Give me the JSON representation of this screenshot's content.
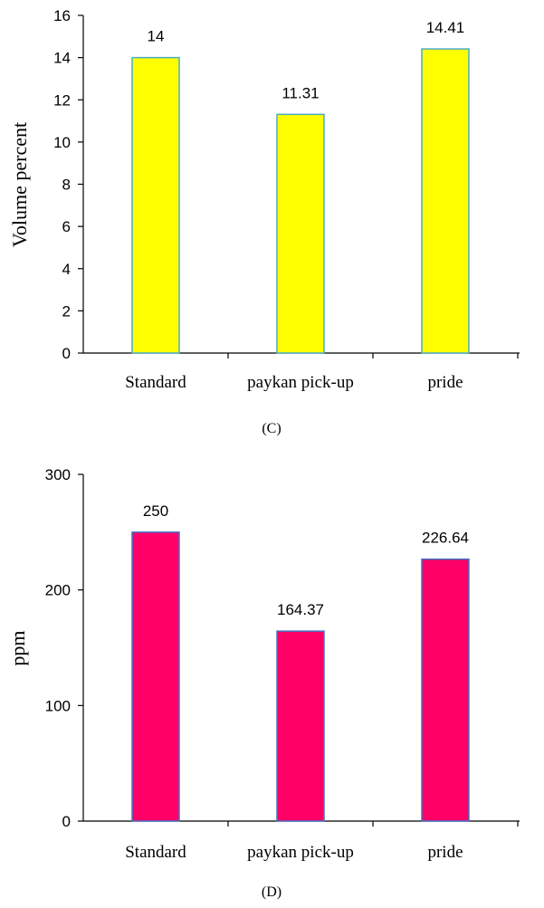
{
  "chart_data": [
    {
      "type": "bar",
      "categories": [
        "Standard",
        "paykan pick-up",
        "pride"
      ],
      "values": [
        14,
        11.31,
        14.41
      ],
      "data_labels": [
        "14",
        "11.31",
        "14.41"
      ],
      "ylabel": "Volume  percent",
      "ylim": [
        0,
        16
      ],
      "yticks": [
        "0",
        "2",
        "4",
        "6",
        "8",
        "10",
        "12",
        "14",
        "16"
      ],
      "caption": "(C)",
      "bar_fill": "#FFFF00",
      "bar_stroke": "#4BACC6",
      "grid": false
    },
    {
      "type": "bar",
      "categories": [
        "Standard",
        "paykan pick-up",
        "pride"
      ],
      "values": [
        250,
        164.37,
        226.64
      ],
      "data_labels": [
        "250",
        "164.37",
        "226.64"
      ],
      "ylabel": "ppm",
      "ylim": [
        0,
        300
      ],
      "yticks": [
        "0",
        "100",
        "200",
        "300"
      ],
      "caption": "(D)",
      "bar_fill": "#FF0066",
      "bar_stroke": "#4472C4",
      "grid": false
    }
  ]
}
